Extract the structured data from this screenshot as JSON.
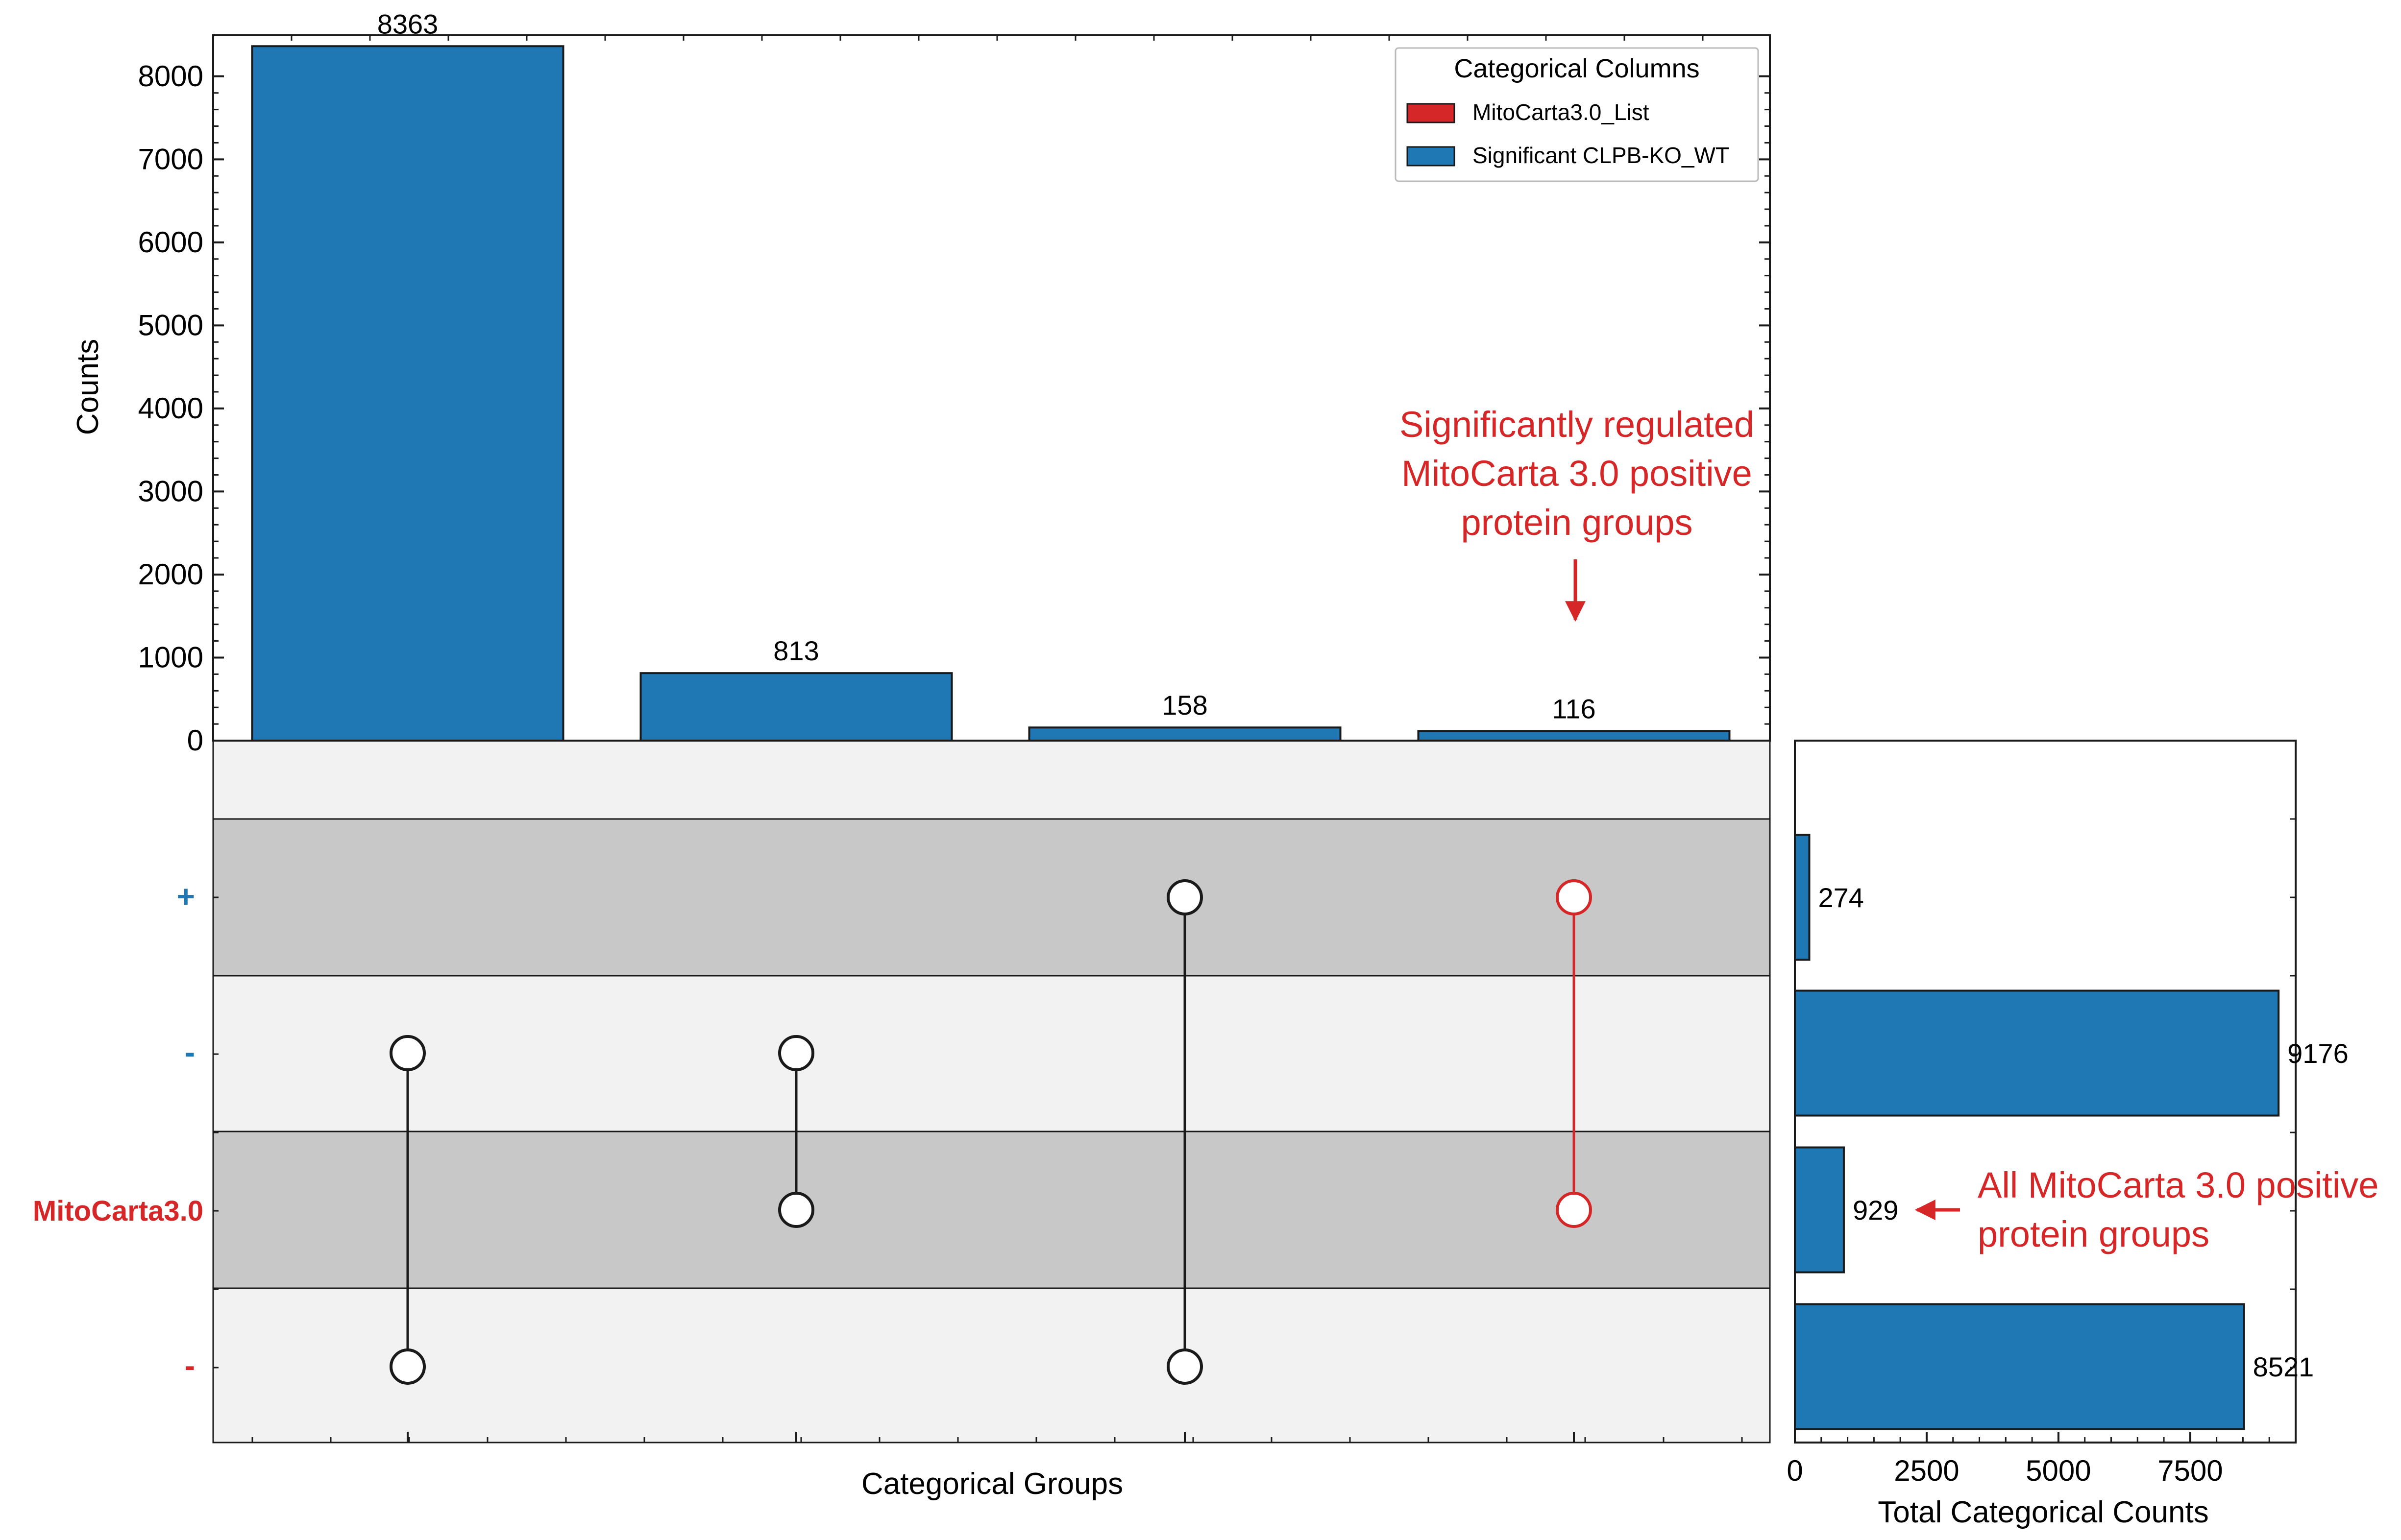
{
  "colors": {
    "bar": "#1f77b4",
    "red": "#d62728",
    "band_light": "#f2f2f2",
    "band_dark": "#c8c8c8",
    "edge": "#1a1a1a"
  },
  "chart_data": {
    "type": "upset",
    "intersection_bars": {
      "type": "bar",
      "ylabel": "Counts",
      "xlabel": "Categorical Groups",
      "ylim": [
        0,
        8400
      ],
      "yticks": [
        "0",
        "1000",
        "2000",
        "3000",
        "4000",
        "5000",
        "6000",
        "7000",
        "8000"
      ],
      "values": [
        8363,
        813,
        158,
        116
      ],
      "value_labels": [
        "8363",
        "813",
        "158",
        "116"
      ]
    },
    "matrix": {
      "rows": [
        {
          "label": "+",
          "category": "Significant CLPB-KO_WT",
          "color": "#1f77b4",
          "band": "light"
        },
        {
          "label": "+",
          "category": "Significant CLPB-KO_WT",
          "color": "#1f77b4",
          "band": "dark"
        },
        {
          "label": "-",
          "category": "Significant CLPB-KO_WT",
          "color": "#1f77b4",
          "band": "light"
        },
        {
          "label": "MitoCarta3.0",
          "category": "MitoCarta3.0_List",
          "color": "#d62728",
          "band": "dark"
        },
        {
          "label": "-",
          "category": "MitoCarta3.0_List",
          "color": "#d62728",
          "band": "light"
        }
      ],
      "columns": [
        {
          "dots": [
            2,
            4
          ],
          "highlight": false
        },
        {
          "dots": [
            2,
            3
          ],
          "highlight": false
        },
        {
          "dots": [
            1,
            4
          ],
          "highlight": false
        },
        {
          "dots": [
            1,
            3
          ],
          "highlight": true
        }
      ]
    },
    "totals": {
      "type": "bar",
      "orientation": "horizontal",
      "xlabel": "Total Categorical Counts",
      "xlim": [
        0,
        9500
      ],
      "xticks": [
        "0",
        "2500",
        "5000",
        "7500"
      ],
      "values": [
        274,
        9176,
        929,
        8521
      ],
      "value_labels": [
        "274",
        "9176",
        "929",
        "8521"
      ]
    },
    "legend": {
      "title": "Categorical Columns",
      "placement": "top-right",
      "entries": [
        {
          "label": "MitoCarta3.0_List",
          "color": "#d62728"
        },
        {
          "label": "Significant CLPB-KO_WT",
          "color": "#1f77b4"
        }
      ]
    },
    "annotations": [
      {
        "lines": [
          "Significantly regulated",
          "MitoCarta 3.0 positive",
          "protein groups"
        ],
        "target": "intersection-bar-4"
      },
      {
        "lines": [
          "All MitoCarta 3.0 positive",
          "protein groups"
        ],
        "target": "total-bar-3"
      }
    ]
  }
}
